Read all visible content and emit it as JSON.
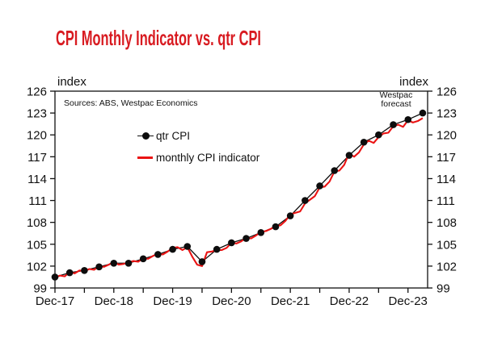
{
  "header": {
    "title": "CPI Monthly Indicator vs. qtr CPI",
    "title_color": "#d81b21"
  },
  "plot": {
    "unit_left": "index",
    "unit_right": "index",
    "source_note": "Sources: ABS, Westpac Economics",
    "forecast_note_line1": "Westpac",
    "forecast_note_line2": "forecast"
  },
  "legend": {
    "items": [
      {
        "label": "qtr CPI",
        "marker": "black-line-with-dot",
        "color": "#0d0d0d"
      },
      {
        "label": "monthly CPI indicator",
        "marker": "red-line",
        "color": "#ea1313"
      }
    ]
  },
  "colors": {
    "title_red": "#d81b21",
    "line_red": "#ea1313",
    "series_black": "#0d0d0d",
    "axis": "#111111",
    "background": "#ffffff"
  },
  "chart_data": {
    "type": "line",
    "title": "CPI Monthly Indicator vs. qtr CPI",
    "xlabel": "",
    "ylabel": "index",
    "ylim": [
      99,
      126
    ],
    "y_ticks": [
      99,
      102,
      105,
      108,
      111,
      114,
      117,
      120,
      123,
      126
    ],
    "x_tick_labels": [
      "Dec-17",
      "Dec-18",
      "Dec-19",
      "Dec-20",
      "Dec-21",
      "Dec-22",
      "Dec-23"
    ],
    "x_label_month_offsets": [
      0,
      12,
      24,
      36,
      48,
      60,
      72
    ],
    "minor_tick_every_months": 6,
    "x_domain_months": [
      0,
      76
    ],
    "grid": false,
    "legend_position": "inside-top-left",
    "annotations": [
      {
        "text": "Westpac forecast",
        "position": "inside-top-right"
      },
      {
        "text": "Sources: ABS, Westpac Economics",
        "position": "inside-top-left"
      }
    ],
    "series": [
      {
        "name": "qtr CPI",
        "type": "line+marker",
        "color": "#0d0d0d",
        "x_months": [
          0,
          3,
          6,
          9,
          12,
          15,
          18,
          21,
          24,
          27,
          30,
          33,
          36,
          39,
          42,
          45,
          48,
          51,
          54,
          57,
          60,
          63,
          66,
          69,
          72,
          75
        ],
        "values": [
          100.5,
          101.1,
          101.4,
          101.9,
          102.4,
          102.4,
          103.0,
          103.6,
          104.3,
          104.7,
          102.6,
          104.3,
          105.2,
          105.8,
          106.6,
          107.4,
          108.9,
          111.0,
          113.0,
          115.1,
          117.2,
          119.0,
          120.0,
          121.4,
          122.1,
          123.0
        ]
      },
      {
        "name": "monthly CPI indicator",
        "type": "line",
        "color": "#ea1313",
        "x_months": [
          0,
          1,
          2,
          3,
          4,
          5,
          6,
          7,
          8,
          9,
          10,
          11,
          12,
          13,
          14,
          15,
          16,
          17,
          18,
          19,
          20,
          21,
          22,
          23,
          24,
          25,
          26,
          27,
          28,
          29,
          30,
          31,
          32,
          33,
          34,
          35,
          36,
          37,
          38,
          39,
          40,
          41,
          42,
          43,
          44,
          45,
          46,
          47,
          48,
          49,
          50,
          51,
          52,
          53,
          54,
          55,
          56,
          57,
          58,
          59,
          60,
          61,
          62,
          63,
          64,
          65,
          66,
          67,
          68,
          69,
          70,
          71,
          72,
          73,
          74,
          75
        ],
        "values": [
          100.4,
          100.7,
          100.6,
          101.2,
          101.0,
          101.4,
          101.3,
          101.6,
          101.5,
          102.0,
          101.9,
          102.2,
          102.6,
          102.2,
          102.3,
          102.5,
          102.7,
          102.6,
          103.1,
          103.0,
          103.4,
          103.7,
          103.6,
          104.0,
          104.5,
          104.6,
          104.2,
          104.6,
          103.3,
          102.2,
          102.0,
          103.9,
          104.0,
          104.2,
          104.2,
          104.5,
          105.2,
          105.1,
          105.4,
          105.9,
          105.8,
          106.2,
          106.7,
          106.8,
          107.1,
          107.5,
          107.6,
          108.2,
          109.1,
          109.3,
          109.5,
          110.6,
          111.1,
          111.6,
          112.8,
          112.9,
          113.6,
          115.0,
          115.1,
          115.9,
          117.5,
          117.0,
          117.6,
          118.7,
          119.2,
          118.9,
          119.7,
          120.2,
          120.3,
          121.2,
          121.4,
          121.1,
          122.0,
          121.7,
          121.9,
          122.3
        ]
      }
    ]
  }
}
